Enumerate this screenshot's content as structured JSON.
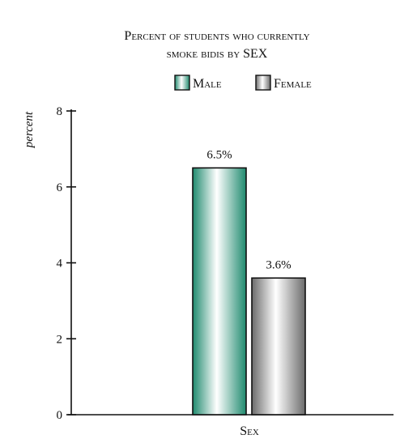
{
  "chart_data": {
    "type": "bar",
    "title_line1": "Percent of students who currently",
    "title_line2": "smoke bidis by SEX",
    "ylabel": "percent",
    "xlabel": "Sex",
    "ylim": [
      0,
      8
    ],
    "yticks": [
      0,
      2,
      4,
      6,
      8
    ],
    "grid": false,
    "legend_position": "top",
    "series": [
      {
        "name": "Male",
        "value": 6.5,
        "label": "6.5%",
        "color": "#1f8a6e"
      },
      {
        "name": "Female",
        "value": 3.6,
        "label": "3.6%",
        "color": "#6b6b6b"
      }
    ]
  }
}
